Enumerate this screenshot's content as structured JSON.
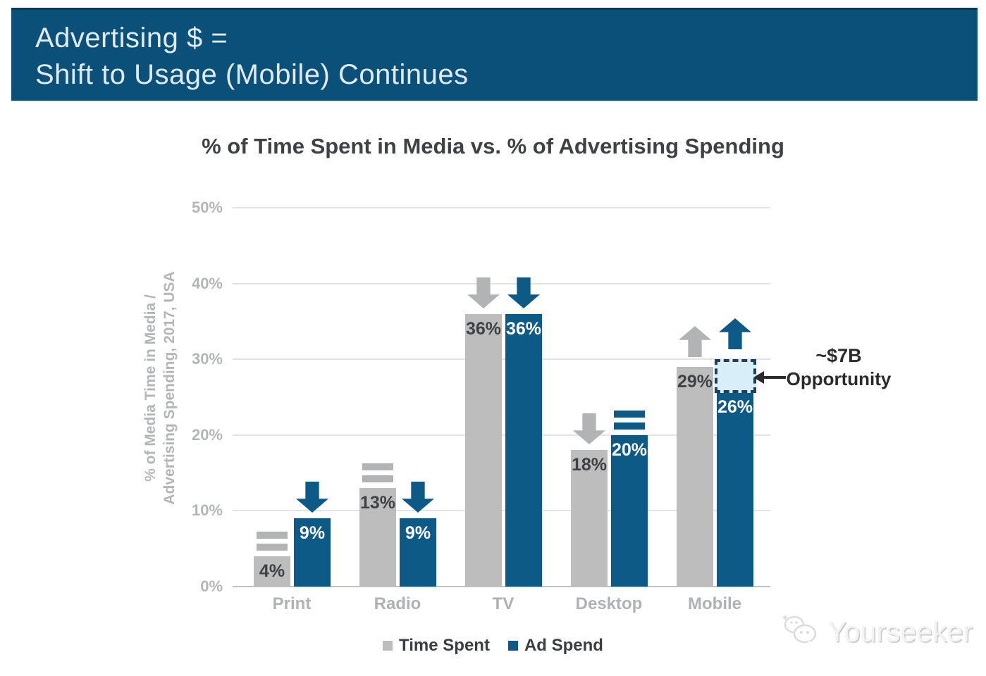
{
  "slide": {
    "title_line1": "Advertising $ =",
    "title_line2": "Shift to Usage (Mobile) Continues"
  },
  "chart_data": {
    "type": "bar",
    "title": "% of Time Spent in Media vs. % of Advertising Spending",
    "ylabel_line1": "% of Media Time in Media /",
    "ylabel_line2": "Advertising Spending, 2017, USA",
    "categories": [
      "Print",
      "Radio",
      "TV",
      "Desktop",
      "Mobile"
    ],
    "series": [
      {
        "name": "Time Spent",
        "color": "#bdbdbd",
        "label_color": "#3e4247",
        "trend_color": "#b1b3b5",
        "values": [
          4,
          13,
          36,
          18,
          29
        ],
        "trends": [
          "flat",
          "flat",
          "down",
          "down",
          "up"
        ]
      },
      {
        "name": "Ad Spend",
        "color": "#0e5a87",
        "label_color": "#ffffff",
        "trend_color": "#0e5a87",
        "values": [
          9,
          9,
          36,
          20,
          26
        ],
        "trends": [
          "down",
          "down",
          "down",
          "flat",
          "up"
        ]
      }
    ],
    "unit": "%",
    "ylim": [
      0,
      50
    ],
    "yticks": [
      "50%",
      "40%",
      "30%",
      "20%",
      "10%",
      "0%"
    ],
    "grid": true,
    "legend_position": "bottom"
  },
  "annotation": {
    "line1": "~$7B",
    "line2": "Opportunity",
    "target": "Mobile Ad Spend gap",
    "box_fill": "#d8eef8",
    "box_border": "#203f60"
  },
  "watermark": {
    "text": "Yourseeker"
  },
  "colors": {
    "banner_bg": "#0a5079",
    "bar_gray": "#bdbdbd",
    "bar_blue": "#0e5a87",
    "annotation_arrow": "#2b2b2b"
  }
}
